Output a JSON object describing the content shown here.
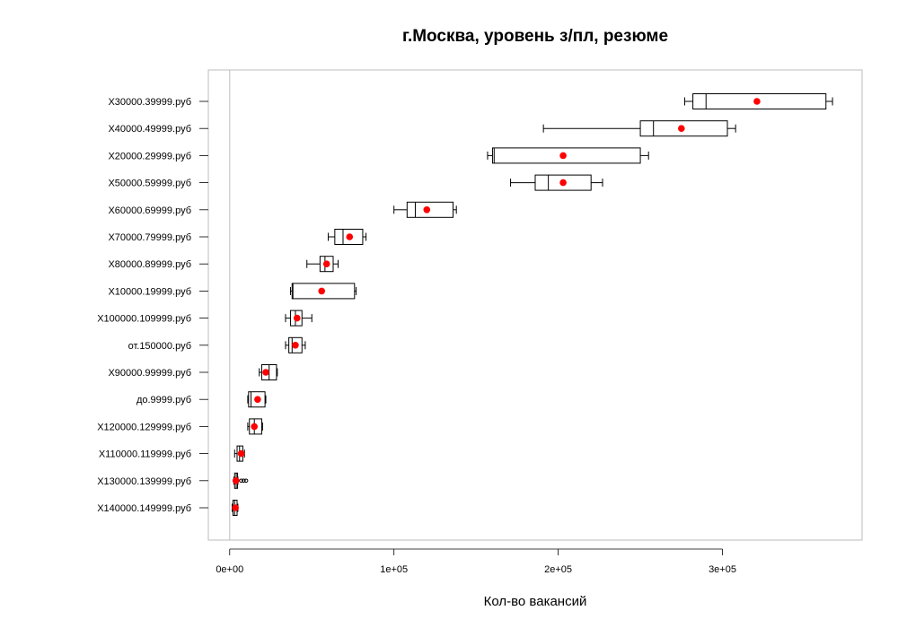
{
  "chart_data": {
    "type": "boxplot",
    "title": "г.Москва, уровень з/пл, резюме",
    "xlabel": "Кол-во вакансий",
    "ylabel": "",
    "xlim": [
      -13000,
      385000
    ],
    "x_ticks": [
      0,
      100000,
      200000,
      300000
    ],
    "x_tick_labels": [
      "0e+00",
      "1e+05",
      "2e+05",
      "3e+05"
    ],
    "reference_line_x": 0,
    "colors": {
      "mean_marker": "#ff0000",
      "box": "#000000",
      "frame": "#bebebe"
    },
    "series": [
      {
        "name": "X30000.39999.руб",
        "whisker_low": 277000,
        "q1": 282000,
        "median": 290000,
        "q3": 363000,
        "whisker_high": 367000,
        "mean": 321000,
        "outliers": []
      },
      {
        "name": "X40000.49999.руб",
        "whisker_low": 191000,
        "q1": 250000,
        "median": 258000,
        "q3": 303000,
        "whisker_high": 308000,
        "mean": 275000,
        "outliers": []
      },
      {
        "name": "X20000.29999.руб",
        "whisker_low": 157000,
        "q1": 160000,
        "median": 161000,
        "q3": 250000,
        "whisker_high": 255000,
        "mean": 203000,
        "outliers": []
      },
      {
        "name": "X50000.59999.руб",
        "whisker_low": 171000,
        "q1": 186000,
        "median": 194000,
        "q3": 220000,
        "whisker_high": 227000,
        "mean": 203000,
        "outliers": []
      },
      {
        "name": "X60000.69999.руб",
        "whisker_low": 100000,
        "q1": 108000,
        "median": 113000,
        "q3": 136000,
        "whisker_high": 138000,
        "mean": 120000,
        "outliers": []
      },
      {
        "name": "X70000.79999.руб",
        "whisker_low": 60000,
        "q1": 64000,
        "median": 69000,
        "q3": 81000,
        "whisker_high": 83000,
        "mean": 73000,
        "outliers": []
      },
      {
        "name": "X80000.89999.руб",
        "whisker_low": 47000,
        "q1": 55000,
        "median": 58000,
        "q3": 63000,
        "whisker_high": 66000,
        "mean": 59000,
        "outliers": []
      },
      {
        "name": "X10000.19999.руб",
        "whisker_low": 37000,
        "q1": 38000,
        "median": 38500,
        "q3": 76000,
        "whisker_high": 77000,
        "mean": 56000,
        "outliers": []
      },
      {
        "name": "X100000.109999.руб",
        "whisker_low": 34000,
        "q1": 37000,
        "median": 40000,
        "q3": 44000,
        "whisker_high": 50000,
        "mean": 41000,
        "outliers": []
      },
      {
        "name": "от.150000.руб",
        "whisker_low": 34000,
        "q1": 36000,
        "median": 38000,
        "q3": 44000,
        "whisker_high": 46000,
        "mean": 40000,
        "outliers": []
      },
      {
        "name": "X90000.99999.руб",
        "whisker_low": 18000,
        "q1": 19500,
        "median": 24000,
        "q3": 28500,
        "whisker_high": 29000,
        "mean": 22000,
        "outliers": []
      },
      {
        "name": "до.9999.руб",
        "whisker_low": 11000,
        "q1": 11500,
        "median": 13000,
        "q3": 21500,
        "whisker_high": 22000,
        "mean": 17000,
        "outliers": []
      },
      {
        "name": "X120000.129999.руб",
        "whisker_low": 11000,
        "q1": 12000,
        "median": 15000,
        "q3": 19500,
        "whisker_high": 20000,
        "mean": 15000,
        "outliers": []
      },
      {
        "name": "X110000.119999.руб",
        "whisker_low": 3000,
        "q1": 4500,
        "median": 6000,
        "q3": 8000,
        "whisker_high": 9000,
        "mean": 7000,
        "outliers": []
      },
      {
        "name": "X130000.139999.руб",
        "whisker_low": 2500,
        "q1": 3000,
        "median": 4000,
        "q3": 4800,
        "whisker_high": 5000,
        "mean": 3800,
        "outliers": [
          7000,
          8500,
          10000
        ]
      },
      {
        "name": "X140000.149999.руб",
        "whisker_low": 1500,
        "q1": 2000,
        "median": 3000,
        "q3": 4500,
        "whisker_high": 5000,
        "mean": 3500,
        "outliers": []
      }
    ]
  }
}
